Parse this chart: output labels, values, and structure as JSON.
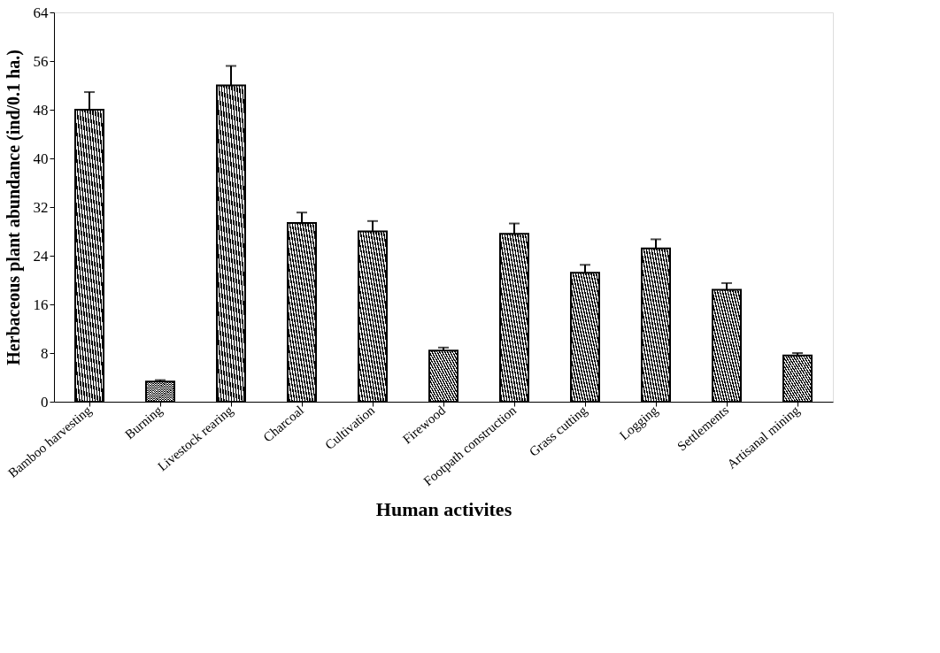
{
  "chart_data": {
    "type": "bar",
    "xlabel": "Human activites",
    "ylabel": "Herbaceous plant abundance (ind/0.1 ha.)",
    "categories": [
      "Bamboo harvesting",
      "Burning",
      "Livestock rearing",
      "Charcoal",
      "Cultivation",
      "Firewood",
      "Footpath construction",
      "Grass cutting",
      "Logging",
      "Settlements",
      "Artisanal mining"
    ],
    "values": [
      48,
      3.3,
      52,
      29.4,
      28,
      8.4,
      27.6,
      21.2,
      25.2,
      18.4,
      7.6
    ],
    "errors": [
      2.9,
      0.25,
      3.2,
      1.7,
      1.7,
      0.5,
      1.7,
      1.3,
      1.5,
      1.1,
      0.4
    ],
    "color": "#000000",
    "ylim": [
      0,
      64
    ],
    "yticks": [
      0,
      8,
      16,
      24,
      32,
      40,
      48,
      56,
      64
    ],
    "grid": false
  }
}
